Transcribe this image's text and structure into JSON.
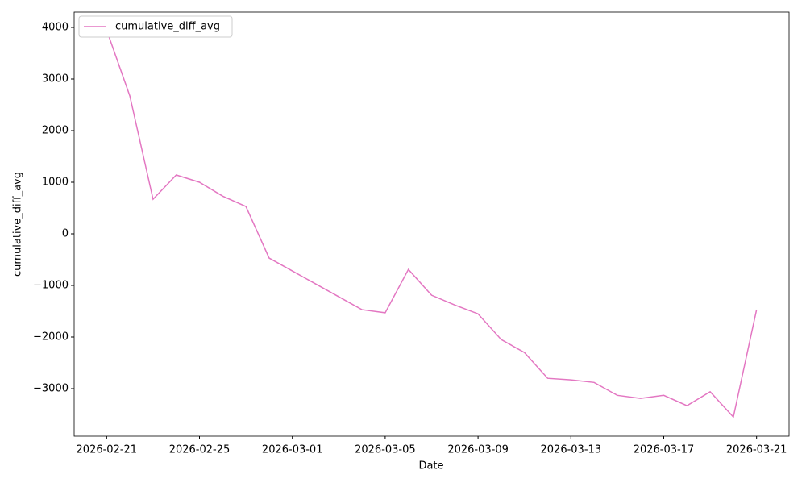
{
  "chart_data": {
    "type": "line",
    "x": [
      "2026-02-21",
      "2026-02-22",
      "2026-02-23",
      "2026-02-24",
      "2026-02-25",
      "2026-02-26",
      "2026-02-27",
      "2026-02-28",
      "2026-03-01",
      "2026-03-02",
      "2026-03-03",
      "2026-03-04",
      "2026-03-05",
      "2026-03-06",
      "2026-03-07",
      "2026-03-08",
      "2026-03-09",
      "2026-03-10",
      "2026-03-11",
      "2026-03-12",
      "2026-03-13",
      "2026-03-14",
      "2026-03-15",
      "2026-03-16",
      "2026-03-17",
      "2026-03-18",
      "2026-03-19",
      "2026-03-20",
      "2026-03-21"
    ],
    "series": [
      {
        "name": "cumulative_diff_avg",
        "color": "#e377c2",
        "values": [
          3950,
          2670,
          670,
          1140,
          1000,
          730,
          530,
          -470,
          -720,
          -970,
          -1220,
          -1470,
          -1530,
          -690,
          -1190,
          -1380,
          -1550,
          -2050,
          -2300,
          -2800,
          -2830,
          -2880,
          -3130,
          -3190,
          -3130,
          -3330,
          -3060,
          -3550,
          -1470
        ]
      }
    ],
    "xlabel": "Date",
    "ylabel": "cumulative_diff_avg",
    "xlim": [
      "2026-02-19T14:24",
      "2026-03-22T09:36"
    ],
    "xticks": [
      "2026-02-21",
      "2026-02-25",
      "2026-03-01",
      "2026-03-05",
      "2026-03-09",
      "2026-03-13",
      "2026-03-17",
      "2026-03-21"
    ],
    "ylim": [
      -3922,
      4297
    ],
    "yticks": [
      {
        "value": -3000,
        "label": "−3000"
      },
      {
        "value": -2000,
        "label": "−2000"
      },
      {
        "value": -1000,
        "label": "−1000"
      },
      0,
      1000,
      2000,
      3000,
      4000
    ],
    "legend": "upper left",
    "grid": false
  }
}
